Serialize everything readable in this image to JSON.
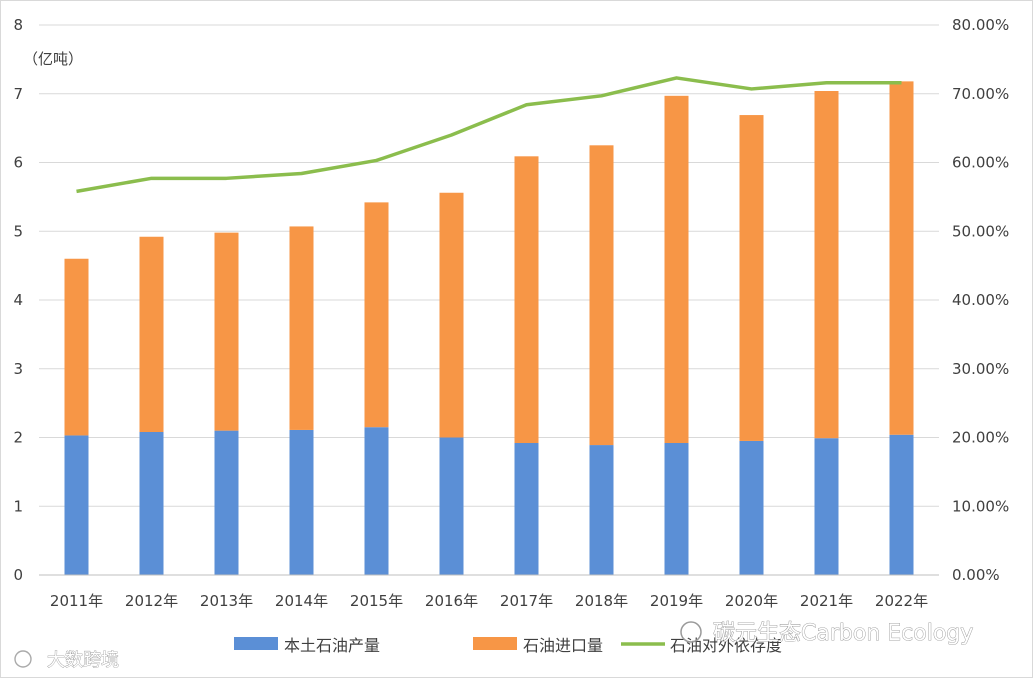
{
  "chart_data": {
    "type": "bar",
    "stacked": true,
    "categories": [
      "2011年",
      "2012年",
      "2013年",
      "2014年",
      "2015年",
      "2016年",
      "2017年",
      "2018年",
      "2019年",
      "2020年",
      "2021年",
      "2022年"
    ],
    "y_unit_label": "（亿吨）",
    "ylim": [
      0,
      8
    ],
    "y_ticks": [
      "0",
      "1",
      "2",
      "3",
      "4",
      "5",
      "6",
      "7",
      "8"
    ],
    "y2lim": [
      0,
      0.8
    ],
    "y2_ticks": [
      "0.00%",
      "10.00%",
      "20.00%",
      "30.00%",
      "40.00%",
      "50.00%",
      "60.00%",
      "70.00%",
      "80.00%"
    ],
    "grid": true,
    "legend_position": "bottom",
    "series": [
      {
        "name": "本土石油产量",
        "kind": "bar",
        "color": "#5b8fd6",
        "values": [
          2.03,
          2.08,
          2.1,
          2.11,
          2.15,
          2.0,
          1.92,
          1.89,
          1.92,
          1.95,
          1.99,
          2.04
        ]
      },
      {
        "name": "石油进口量",
        "kind": "bar",
        "color": "#f79646",
        "values": [
          2.57,
          2.84,
          2.88,
          2.96,
          3.27,
          3.56,
          4.17,
          4.36,
          5.05,
          4.74,
          5.05,
          5.14
        ]
      },
      {
        "name": "石油对外依存度",
        "kind": "line",
        "axis": "right",
        "color": "#8bbd4d",
        "values": [
          0.558,
          0.577,
          0.577,
          0.584,
          0.603,
          0.64,
          0.684,
          0.697,
          0.723,
          0.707,
          0.716,
          0.716
        ]
      }
    ]
  },
  "watermarks": {
    "right": "碳元生态Carbon Ecology",
    "left": "大数跨境"
  }
}
